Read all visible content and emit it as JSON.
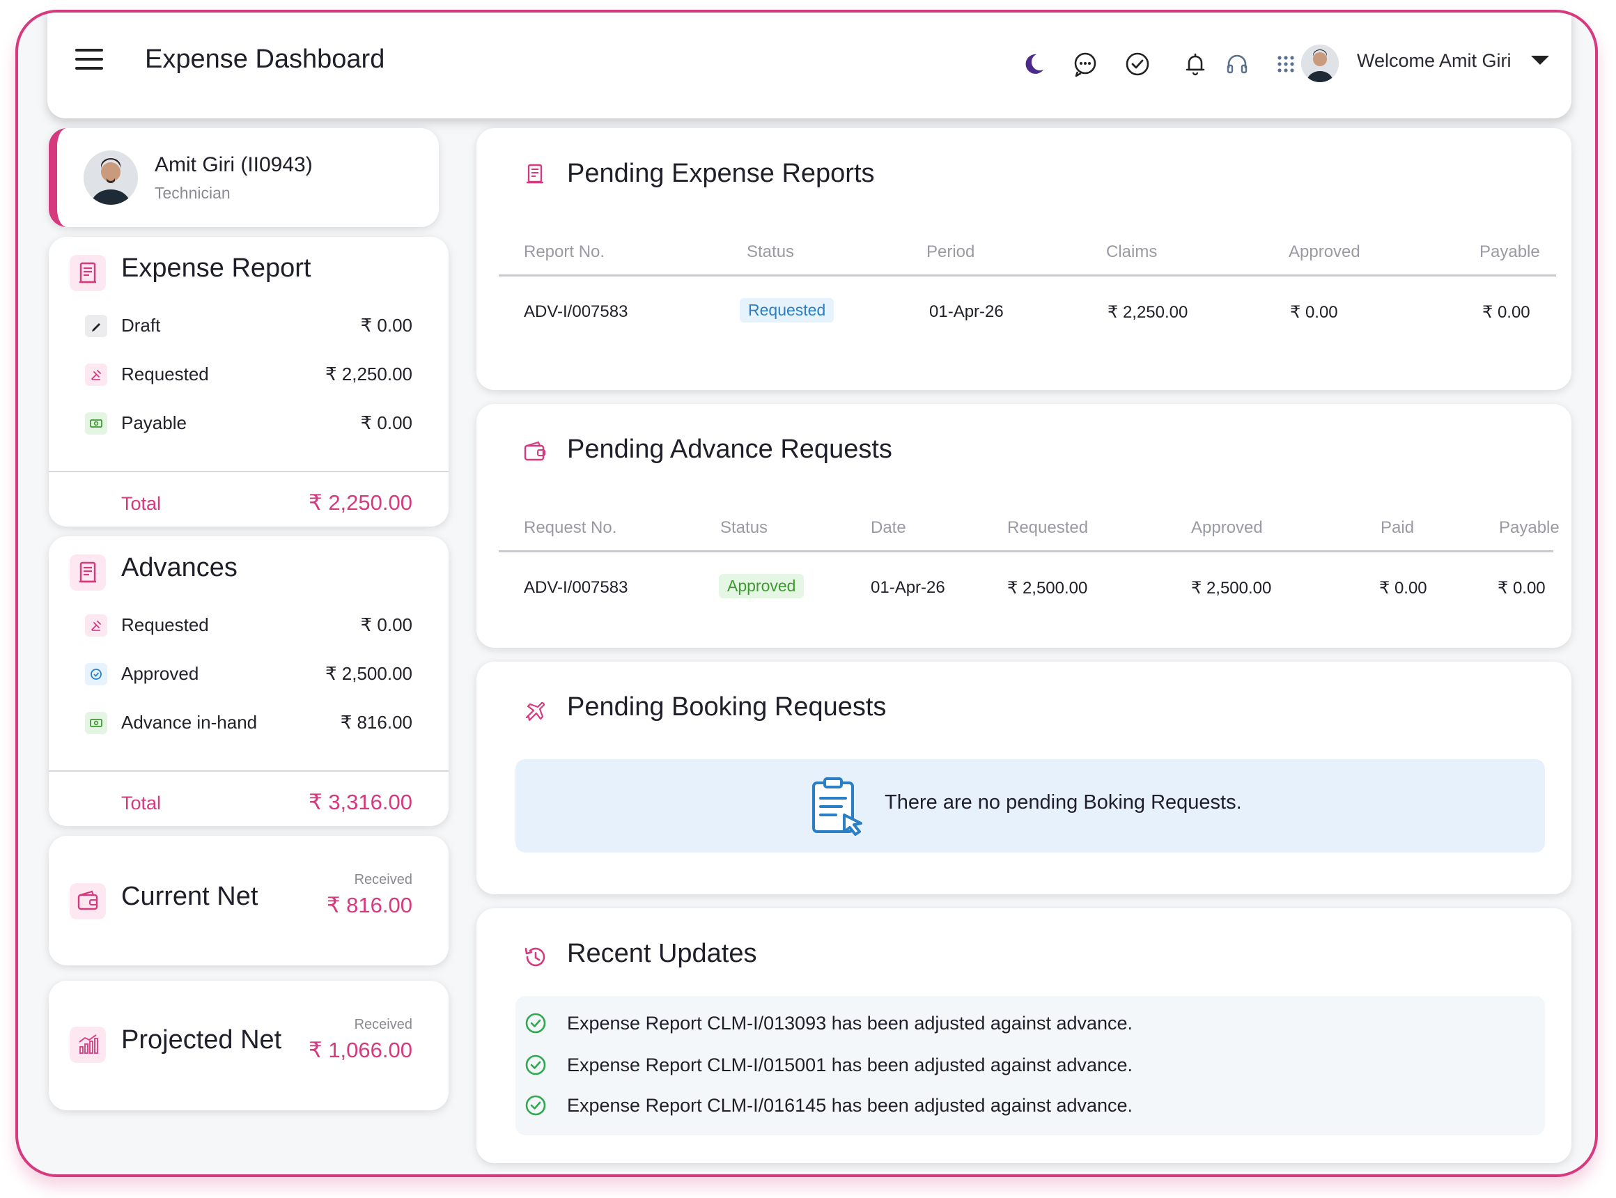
{
  "header": {
    "title": "Expense Dashboard",
    "welcome": "Welcome Amit Giri",
    "icons": [
      "menu-icon",
      "moon-icon",
      "chat-icon",
      "check-circle-icon",
      "bell-icon",
      "headset-icon",
      "apps-grid-icon",
      "chevron-down-icon"
    ]
  },
  "profile": {
    "name": "Amit Giri (II0943)",
    "role": "Technician"
  },
  "expense_report": {
    "title": "Expense Report",
    "rows": [
      {
        "label": "Draft",
        "value": "₹ 0.00",
        "icon": "pencil-icon"
      },
      {
        "label": "Requested",
        "value": "₹ 2,250.00",
        "icon": "hand-raise-icon"
      },
      {
        "label": "Payable",
        "value": "₹ 0.00",
        "icon": "cash-icon"
      }
    ],
    "total_label": "Total",
    "total_value": "₹ 2,250.00"
  },
  "advances": {
    "title": "Advances",
    "rows": [
      {
        "label": "Requested",
        "value": "₹ 0.00",
        "icon": "hand-raise-icon"
      },
      {
        "label": "Approved",
        "value": "₹ 2,500.00",
        "icon": "check-circle-icon"
      },
      {
        "label": "Advance in-hand",
        "value": "₹ 816.00",
        "icon": "cash-icon"
      }
    ],
    "total_label": "Total",
    "total_value": "₹ 3,316.00"
  },
  "current_net": {
    "title": "Current Net",
    "label": "Received",
    "value": "₹ 816.00"
  },
  "projected_net": {
    "title": "Projected Net",
    "label": "Received",
    "value": "₹ 1,066.00"
  },
  "pending_expense": {
    "title": "Pending Expense Reports",
    "headers": [
      "Report No.",
      "Status",
      "Period",
      "Claims",
      "Approved",
      "Payable"
    ],
    "row": {
      "no": "ADV-I/007583",
      "status": "Requested",
      "period": "01-Apr-26",
      "claims": "₹ 2,250.00",
      "approved": "₹ 0.00",
      "payable": "₹ 0.00"
    }
  },
  "pending_advance": {
    "title": "Pending Advance Requests",
    "headers": [
      "Request No.",
      "Status",
      "Date",
      "Requested",
      "Approved",
      "Paid",
      "Payable"
    ],
    "row": {
      "no": "ADV-I/007583",
      "status": "Approved",
      "date": "01-Apr-26",
      "requested": "₹ 2,500.00",
      "approved": "₹ 2,500.00",
      "paid": "₹ 0.00",
      "payable": "₹ 0.00"
    }
  },
  "pending_booking": {
    "title": "Pending Booking Requests",
    "empty_message": "There are no pending Boking Requests."
  },
  "recent_updates": {
    "title": "Recent Updates",
    "items": [
      "Expense Report CLM-I/013093 has been adjusted against advance.",
      "Expense Report CLM-I/015001 has been adjusted against advance.",
      "Expense Report CLM-I/016145 has been adjusted against advance."
    ]
  },
  "colors": {
    "accent": "#d63a7e",
    "requested": "#2a7fc5",
    "approved": "#3d9a31",
    "success": "#2fa84f"
  }
}
